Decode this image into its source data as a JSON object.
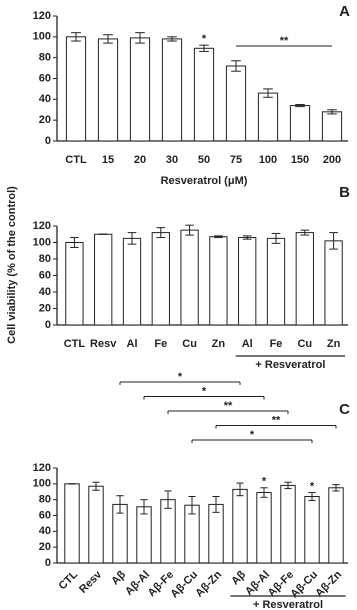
{
  "chart_data": [
    {
      "type": "bar",
      "panel_label": "A",
      "xlabel": "Resveratrol (μM)",
      "categories": [
        "CTL",
        "15",
        "20",
        "30",
        "50",
        "75",
        "100",
        "150",
        "200"
      ],
      "values": [
        100,
        98,
        99,
        98,
        89,
        72,
        46,
        34,
        28
      ],
      "errors": [
        4,
        4,
        5,
        2,
        3,
        5,
        4,
        1,
        2
      ],
      "markers": [
        null,
        null,
        null,
        null,
        "*",
        null,
        null,
        null,
        null
      ],
      "comparisons": [
        {
          "from": 5,
          "to": 8,
          "label": "**"
        }
      ],
      "ylim": [
        0,
        120
      ],
      "yticks": [
        0,
        20,
        40,
        60,
        80,
        100,
        120
      ],
      "color": "#ffffff"
    },
    {
      "type": "bar",
      "panel_label": "B",
      "ylabel": "Cell viability (% of the control)",
      "categories": [
        "CTL",
        "Resv",
        "Al",
        "Fe",
        "Cu",
        "Zn",
        "Al",
        "Fe",
        "Cu",
        "Zn"
      ],
      "values": [
        100,
        110,
        105,
        112,
        115,
        107,
        106,
        105,
        112,
        102
      ],
      "errors": [
        6,
        0,
        7,
        6,
        6,
        1,
        2,
        6,
        3,
        10
      ],
      "group": {
        "label": "+ Resveratrol",
        "from": 6,
        "to": 9
      },
      "ylim": [
        0,
        120
      ],
      "yticks": [
        0,
        20,
        40,
        60,
        80,
        100,
        120
      ],
      "color": "#ffffff"
    },
    {
      "type": "bar",
      "panel_label": "C",
      "categories": [
        "CTL",
        "Resv",
        "Aβ",
        "Aβ-Al",
        "Aβ-Fe",
        "Aβ-Cu",
        "Aβ-Zn",
        "Aβ",
        "Aβ-Al",
        "Aβ-Fe",
        "Aβ-Cu",
        "Aβ-Zn"
      ],
      "values": [
        100,
        97,
        74,
        71,
        80,
        73,
        74,
        93,
        89,
        98,
        84,
        95
      ],
      "errors": [
        0,
        5,
        11,
        9,
        11,
        11,
        10,
        8,
        6,
        4,
        5,
        4
      ],
      "markers": [
        null,
        null,
        null,
        null,
        null,
        null,
        null,
        null,
        "*",
        null,
        "*",
        null
      ],
      "comparisons": [
        {
          "from": 2,
          "to": 7,
          "label": "*"
        },
        {
          "from": 3,
          "to": 8,
          "label": "*"
        },
        {
          "from": 4,
          "to": 9,
          "label": "**"
        },
        {
          "from": 6,
          "to": 11,
          "label": "**"
        },
        {
          "from": 5,
          "to": 10,
          "label": "*"
        }
      ],
      "group": {
        "label": "+ Resveratrol",
        "from": 7,
        "to": 11
      },
      "ylim": [
        0,
        120
      ],
      "yticks": [
        0,
        20,
        40,
        60,
        80,
        100,
        120
      ],
      "color": "#ffffff"
    }
  ]
}
